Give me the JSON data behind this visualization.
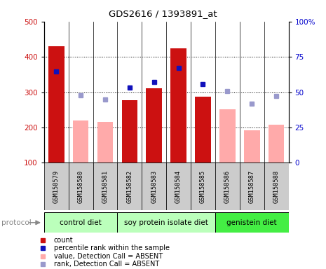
{
  "title": "GDS2616 / 1393891_at",
  "samples": [
    "GSM158579",
    "GSM158580",
    "GSM158581",
    "GSM158582",
    "GSM158583",
    "GSM158584",
    "GSM158585",
    "GSM158586",
    "GSM158587",
    "GSM158588"
  ],
  "count_values": [
    430,
    null,
    null,
    278,
    310,
    425,
    288,
    null,
    null,
    null
  ],
  "absent_value": [
    null,
    220,
    215,
    null,
    null,
    null,
    null,
    252,
    192,
    207
  ],
  "percentile_rank": [
    358,
    null,
    null,
    312,
    328,
    368,
    322,
    null,
    null,
    null
  ],
  "absent_rank": [
    null,
    292,
    280,
    null,
    null,
    null,
    null,
    304,
    268,
    290
  ],
  "ylim_left": [
    100,
    500
  ],
  "ylim_right": [
    0,
    100
  ],
  "left_ticks": [
    100,
    200,
    300,
    400,
    500
  ],
  "right_ticks": [
    0,
    25,
    50,
    75,
    100
  ],
  "bar_color_count": "#cc1111",
  "bar_color_absent": "#ffaaaa",
  "dot_color_rank": "#1111bb",
  "dot_color_absent_rank": "#9999cc",
  "background_label": "#cccccc",
  "protocol_color_1": "#bbffbb",
  "protocol_color_2": "#44ee44",
  "groups": [
    {
      "label": "control diet",
      "indices": [
        0,
        1,
        2
      ],
      "color": "#bbffbb"
    },
    {
      "label": "soy protein isolate diet",
      "indices": [
        3,
        4,
        5,
        6
      ],
      "color": "#bbffbb"
    },
    {
      "label": "genistein diet",
      "indices": [
        7,
        8,
        9
      ],
      "color": "#44ee44"
    }
  ],
  "legend_items": [
    {
      "color": "#cc1111",
      "label": "count"
    },
    {
      "color": "#1111bb",
      "label": "percentile rank within the sample"
    },
    {
      "color": "#ffaaaa",
      "label": "value, Detection Call = ABSENT"
    },
    {
      "color": "#9999cc",
      "label": "rank, Detection Call = ABSENT"
    }
  ]
}
